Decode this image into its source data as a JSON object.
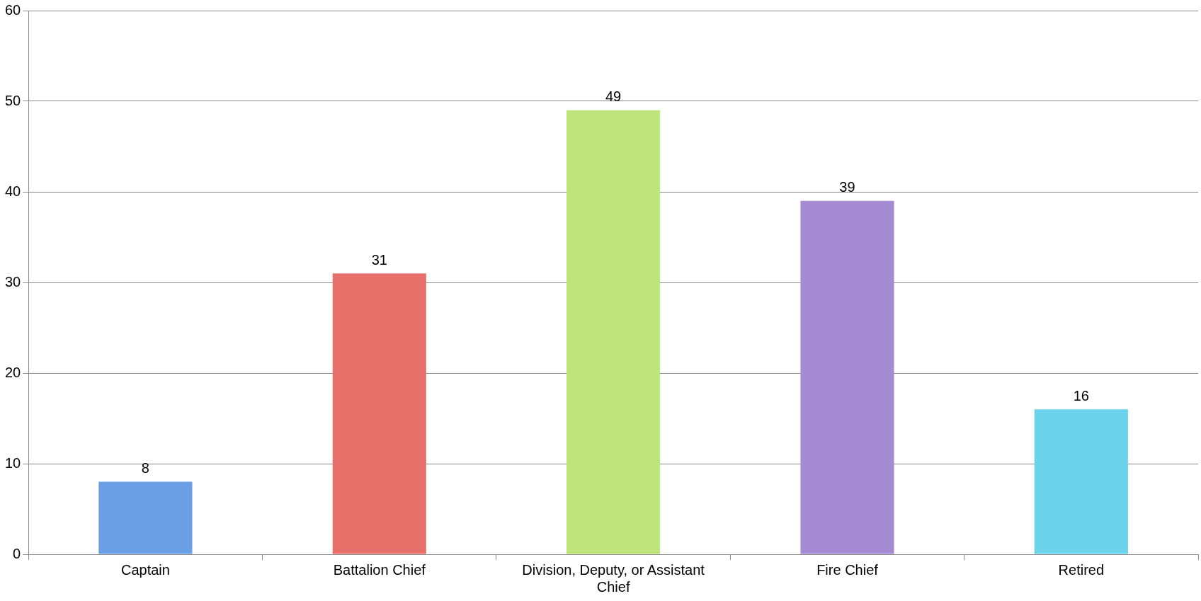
{
  "chart_data": {
    "type": "bar",
    "categories": [
      "Captain",
      "Battalion Chief",
      "Division, Deputy, or Assistant Chief",
      "Fire Chief",
      "Retired"
    ],
    "values": [
      8,
      31,
      49,
      39,
      16
    ],
    "colors": [
      "#6a9fe6",
      "#e8706b",
      "#c0e47c",
      "#a58ad4",
      "#6dd3ec"
    ],
    "ylim": [
      0,
      60
    ],
    "yticks": [
      0,
      10,
      20,
      30,
      40,
      50,
      60
    ],
    "grid": "y",
    "data_labels": true
  }
}
